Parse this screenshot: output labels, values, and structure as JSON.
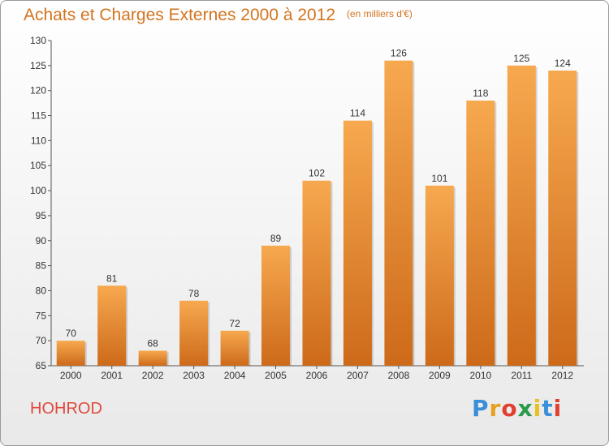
{
  "header": {
    "title": "Achats et Charges Externes 2000 à 2012",
    "unit": "(en milliers d'€)"
  },
  "footer": {
    "place": "HOHROD",
    "logo_letters": [
      "P",
      "r",
      "o",
      "x",
      "i",
      "t",
      "i"
    ],
    "logo_colors": [
      "#3a8fd8",
      "#e8a020",
      "#e04030",
      "#2a9a4a",
      "#e8c020",
      "#3a8fd8",
      "#e04030"
    ]
  },
  "colors": {
    "bar_top": "#f7a94f",
    "bar_bottom": "#cd6a1a",
    "title": "#d2741f"
  },
  "chart_data": {
    "type": "bar",
    "title": "Achats et Charges Externes 2000 à 2012",
    "subtitle": "(en milliers d'€)",
    "categories": [
      "2000",
      "2001",
      "2002",
      "2003",
      "2004",
      "2005",
      "2006",
      "2007",
      "2008",
      "2009",
      "2010",
      "2011",
      "2012"
    ],
    "values": [
      70,
      81,
      68,
      78,
      72,
      89,
      102,
      114,
      126,
      101,
      118,
      125,
      124
    ],
    "ylim": [
      65,
      130
    ],
    "yticks": [
      65,
      70,
      75,
      80,
      85,
      90,
      95,
      100,
      105,
      110,
      115,
      120,
      125,
      130
    ],
    "grid": false,
    "data_labels": true
  }
}
